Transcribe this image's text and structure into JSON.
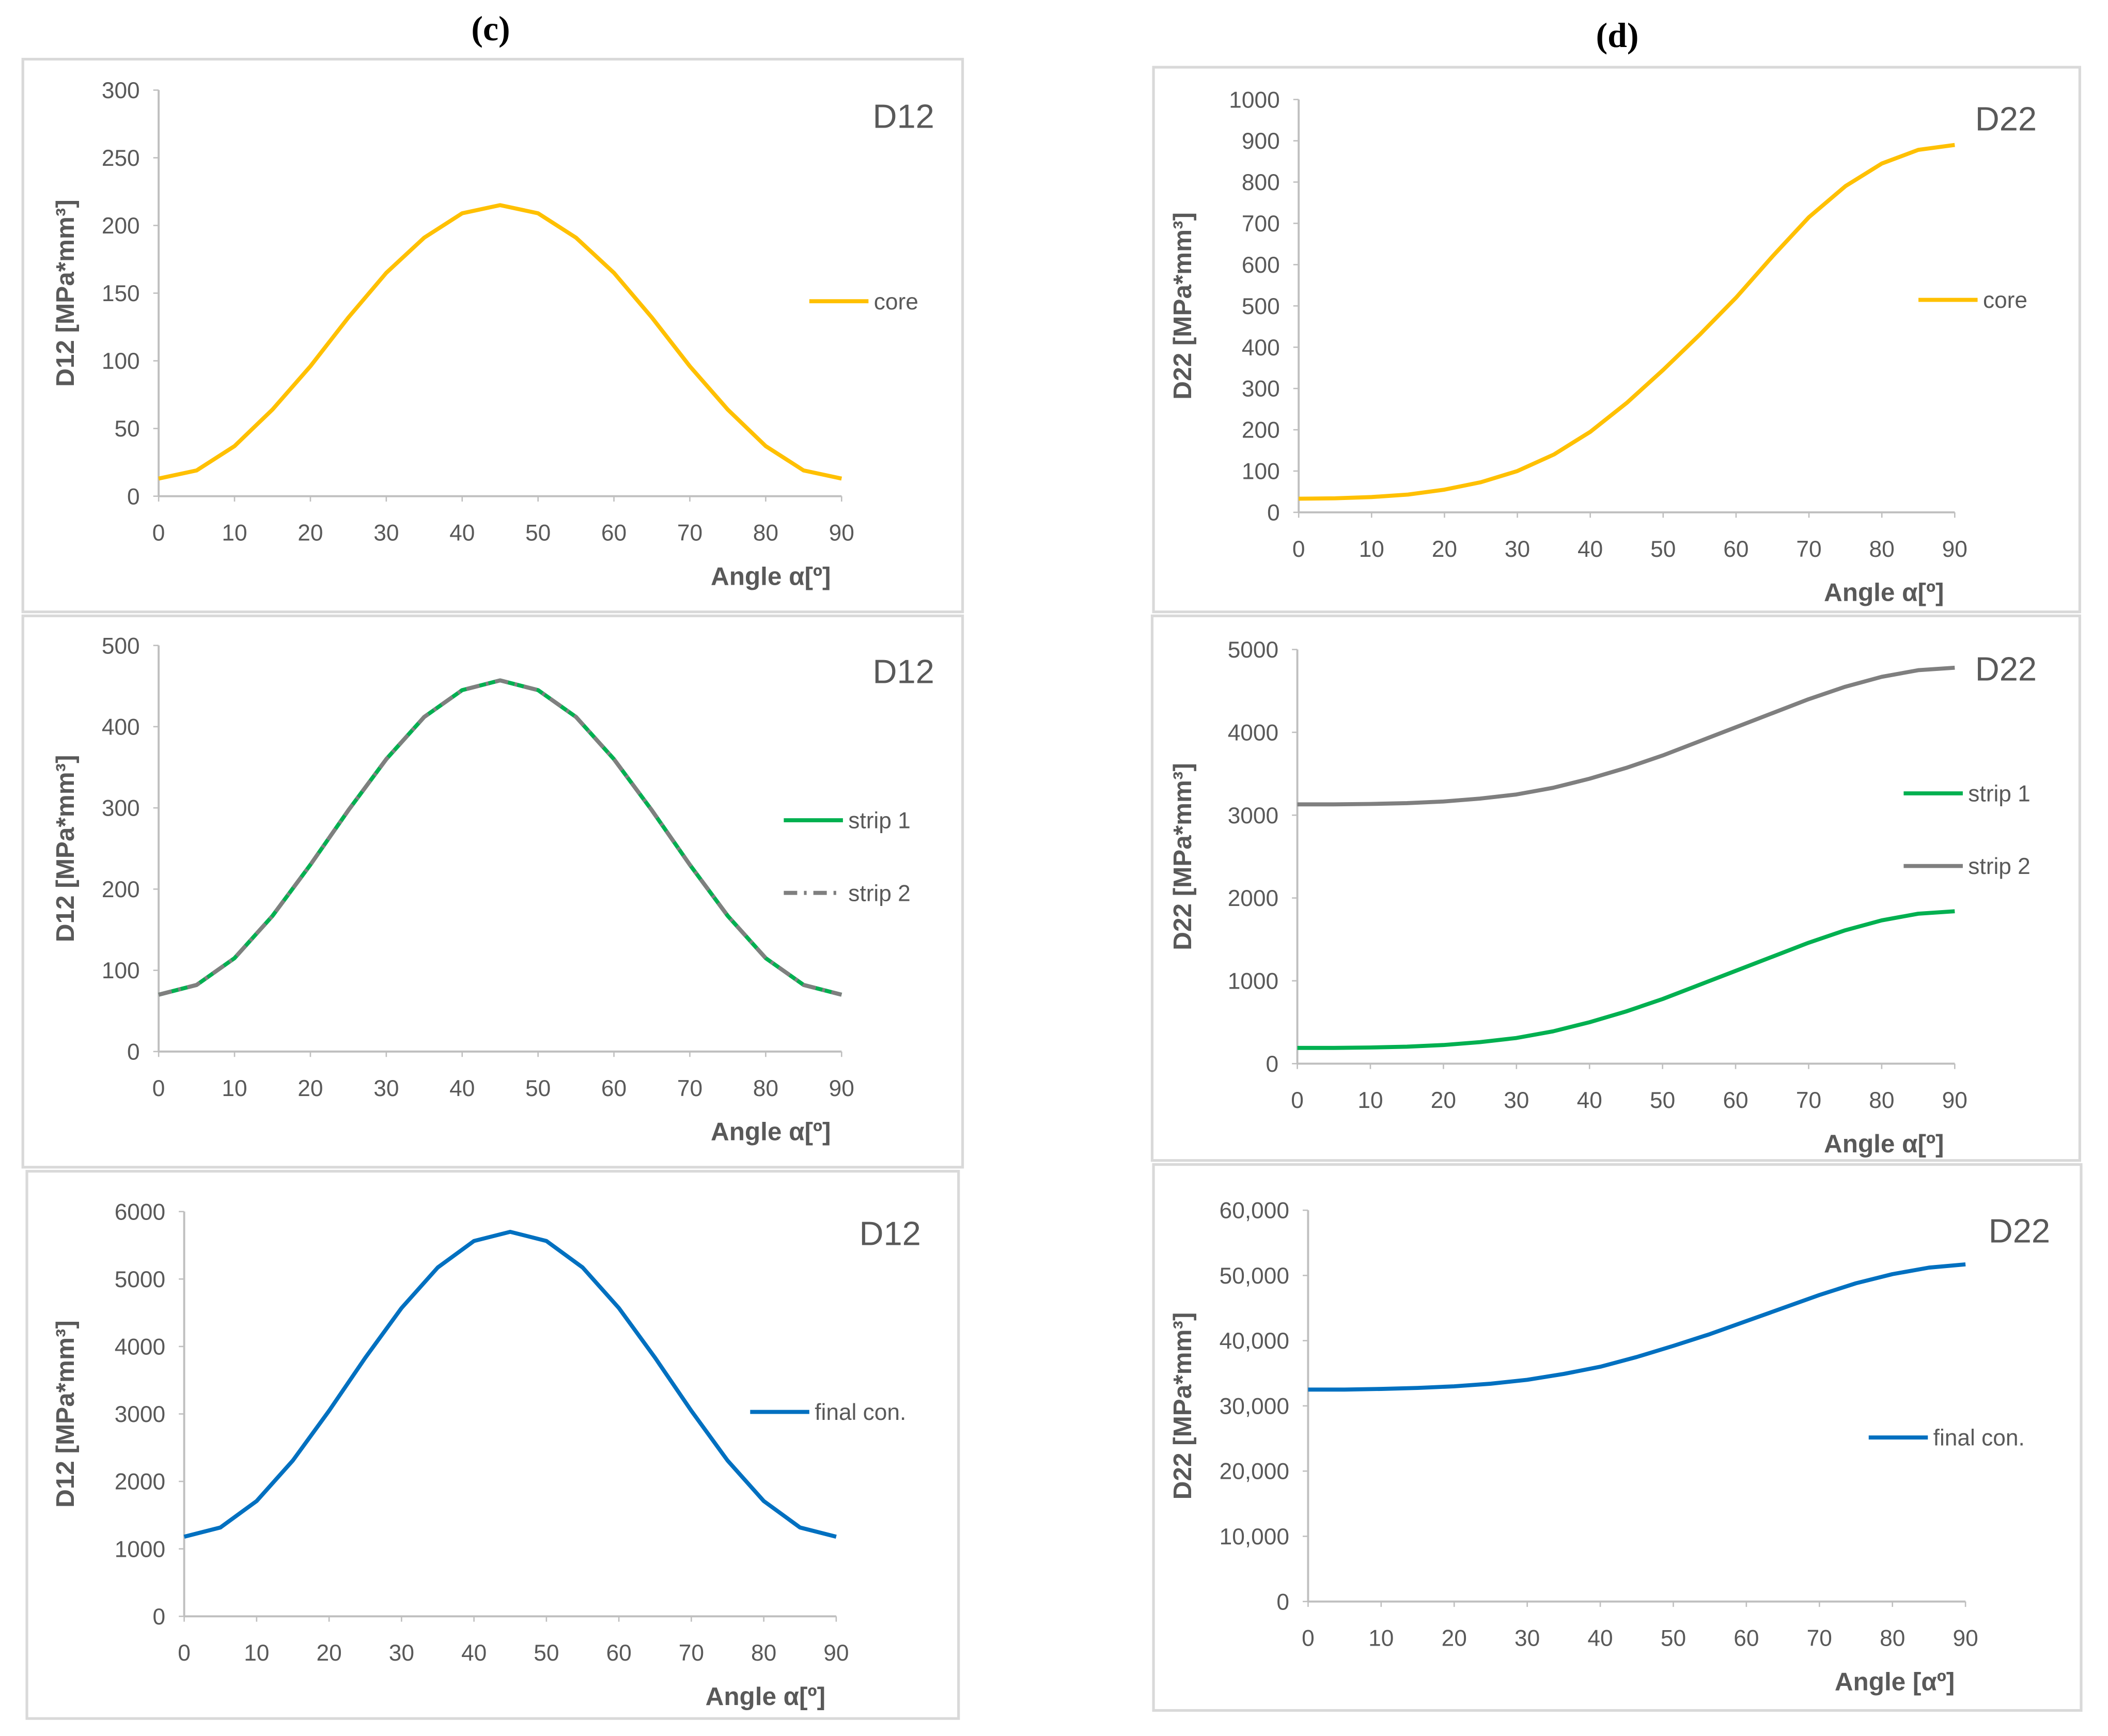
{
  "panel_labels": [
    "(c)",
    "(d)"
  ],
  "chart_data": [
    {
      "type": "line",
      "annotation": "D12",
      "ylabel": "D12 [MPa*mm³]",
      "xlabel": "Angle α[º]",
      "x": [
        0,
        5,
        10,
        15,
        20,
        25,
        30,
        35,
        40,
        45,
        50,
        55,
        60,
        65,
        70,
        75,
        80,
        85,
        90
      ],
      "series": [
        {
          "name": "core",
          "color": "#ffc000",
          "values": [
            13,
            19,
            37,
            64,
            96,
            132,
            165,
            191,
            209,
            215,
            209,
            191,
            165,
            132,
            96,
            64,
            37,
            19,
            13
          ]
        }
      ],
      "xlim": [
        0,
        90
      ],
      "xticks": [
        0,
        10,
        20,
        30,
        40,
        50,
        60,
        70,
        80,
        90
      ],
      "ylim": [
        0,
        300
      ],
      "yticks": [
        0,
        50,
        100,
        150,
        200,
        250,
        300
      ],
      "legend": "right"
    },
    {
      "type": "line",
      "annotation": "D12",
      "ylabel": "D12 [MPa*mm³]",
      "xlabel": "Angle α[º]",
      "x": [
        0,
        5,
        10,
        15,
        20,
        25,
        30,
        35,
        40,
        45,
        50,
        55,
        60,
        65,
        70,
        75,
        80,
        85,
        90
      ],
      "series": [
        {
          "name": "strip 1",
          "color": "#00b050",
          "values": [
            70,
            82,
            115,
            167,
            230,
            297,
            360,
            412,
            445,
            457,
            445,
            412,
            360,
            297,
            230,
            167,
            115,
            82,
            70
          ]
        },
        {
          "name": "strip 2",
          "color": "#7f7f7f",
          "dash": "dash-dot",
          "values": [
            70,
            82,
            115,
            167,
            230,
            297,
            360,
            412,
            445,
            457,
            445,
            412,
            360,
            297,
            230,
            167,
            115,
            82,
            70
          ]
        }
      ],
      "xlim": [
        0,
        90
      ],
      "xticks": [
        0,
        10,
        20,
        30,
        40,
        50,
        60,
        70,
        80,
        90
      ],
      "ylim": [
        0,
        500
      ],
      "yticks": [
        0,
        100,
        200,
        300,
        400,
        500
      ],
      "legend": "right"
    },
    {
      "type": "line",
      "annotation": "D12",
      "ylabel": "D12 [MPa*mm³]",
      "xlabel": "Angle α[º]",
      "x": [
        0,
        5,
        10,
        15,
        20,
        25,
        30,
        35,
        40,
        45,
        50,
        55,
        60,
        65,
        70,
        75,
        80,
        85,
        90
      ],
      "series": [
        {
          "name": "final con.",
          "color": "#0070c0",
          "values": [
            1180,
            1317,
            1709,
            2310,
            3047,
            3833,
            4570,
            5171,
            5564,
            5700,
            5564,
            5171,
            4570,
            3833,
            3047,
            2310,
            1709,
            1317,
            1180
          ]
        }
      ],
      "xlim": [
        0,
        90
      ],
      "xticks": [
        0,
        10,
        20,
        30,
        40,
        50,
        60,
        70,
        80,
        90
      ],
      "ylim": [
        0,
        6000
      ],
      "yticks": [
        0,
        1000,
        2000,
        3000,
        4000,
        5000,
        6000
      ],
      "legend": "right"
    },
    {
      "type": "line",
      "annotation": "D22",
      "ylabel": "D22 [MPa*mm³]",
      "xlabel": "Angle α[º]",
      "x": [
        0,
        5,
        10,
        15,
        20,
        25,
        30,
        35,
        40,
        45,
        50,
        55,
        60,
        65,
        70,
        75,
        80,
        85,
        90
      ],
      "series": [
        {
          "name": "core",
          "color": "#ffc000",
          "values": [
            33,
            34,
            37,
            43,
            55,
            73,
            100,
            140,
            195,
            265,
            345,
            430,
            520,
            620,
            715,
            790,
            845,
            878,
            890
          ]
        }
      ],
      "xlim": [
        0,
        90
      ],
      "xticks": [
        0,
        10,
        20,
        30,
        40,
        50,
        60,
        70,
        80,
        90
      ],
      "ylim": [
        0,
        1000
      ],
      "yticks": [
        0,
        100,
        200,
        300,
        400,
        500,
        600,
        700,
        800,
        900,
        1000
      ],
      "legend": "right"
    },
    {
      "type": "line",
      "annotation": "D22",
      "ylabel": "D22 [MPa*mm³]",
      "xlabel": "Angle α[º]",
      "x": [
        0,
        5,
        10,
        15,
        20,
        25,
        30,
        35,
        40,
        45,
        50,
        55,
        60,
        65,
        70,
        75,
        80,
        85,
        90
      ],
      "series": [
        {
          "name": "strip 1",
          "color": "#00b050",
          "values": [
            190,
            190,
            195,
            205,
            225,
            260,
            310,
            390,
            500,
            630,
            780,
            950,
            1120,
            1290,
            1460,
            1610,
            1730,
            1810,
            1840
          ]
        },
        {
          "name": "strip 2",
          "color": "#7f7f7f",
          "values": [
            3130,
            3130,
            3135,
            3145,
            3165,
            3200,
            3250,
            3330,
            3440,
            3570,
            3720,
            3890,
            4060,
            4230,
            4400,
            4550,
            4670,
            4750,
            4780
          ]
        }
      ],
      "xlim": [
        0,
        90
      ],
      "xticks": [
        0,
        10,
        20,
        30,
        40,
        50,
        60,
        70,
        80,
        90
      ],
      "ylim": [
        0,
        5000
      ],
      "yticks": [
        0,
        1000,
        2000,
        3000,
        4000,
        5000
      ],
      "legend": "right"
    },
    {
      "type": "line",
      "annotation": "D22",
      "ylabel": "D22 [MPa*mm³]",
      "xlabel": "Angle [αº]",
      "x": [
        0,
        5,
        10,
        15,
        20,
        25,
        30,
        35,
        40,
        45,
        50,
        55,
        60,
        65,
        70,
        75,
        80,
        85,
        90
      ],
      "series": [
        {
          "name": "final con.",
          "color": "#0070c0",
          "values": [
            32500,
            32500,
            32600,
            32750,
            33000,
            33400,
            34000,
            34900,
            36000,
            37500,
            39200,
            41000,
            43000,
            45000,
            47000,
            48800,
            50200,
            51200,
            51700
          ]
        }
      ],
      "xlim": [
        0,
        90
      ],
      "xticks": [
        0,
        10,
        20,
        30,
        40,
        50,
        60,
        70,
        80,
        90
      ],
      "ylim": [
        0,
        60000
      ],
      "yticks": [
        0,
        {
          "value": 10000,
          "label": "10,000"
        },
        {
          "value": 20000,
          "label": "20,000"
        },
        {
          "value": 30000,
          "label": "30,000"
        },
        {
          "value": 40000,
          "label": "40,000"
        },
        {
          "value": 50000,
          "label": "50,000"
        },
        {
          "value": 60000,
          "label": "60,000"
        }
      ],
      "legend": "right"
    }
  ]
}
